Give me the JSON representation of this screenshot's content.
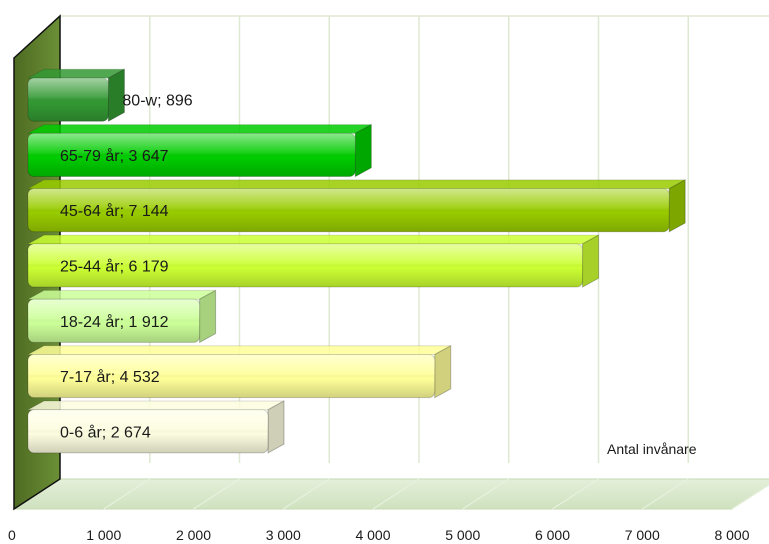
{
  "chart_data": {
    "type": "bar",
    "orientation": "horizontal",
    "categories": [
      "0-6 år",
      "7-17 år",
      "18-24 år",
      "25-44 år",
      "45-64 år",
      "65-79 år",
      "80-w"
    ],
    "values": [
      2674,
      4532,
      1912,
      6179,
      7144,
      3647,
      896
    ],
    "data_labels": [
      "0-6 år; 2 674",
      "7-17 år; 4 532",
      "18-24 år; 1 912",
      "25-44 år; 6 179",
      "45-64 år; 7 144",
      "65-79 år; 3 647",
      "80-w; 896"
    ],
    "colors": [
      "#fdfde0",
      "#ffff99",
      "#ccff99",
      "#ccff33",
      "#99cc00",
      "#00cc00",
      "#339933"
    ],
    "xlim": [
      0,
      8000
    ],
    "xticks": [
      0,
      1000,
      2000,
      3000,
      4000,
      5000,
      6000,
      7000,
      8000
    ],
    "xtick_labels": [
      "0",
      "1 000",
      "2 000",
      "3 000",
      "4 000",
      "5 000",
      "6 000",
      "7 000",
      "8 000"
    ],
    "annotation": "Antal invånare",
    "grid": true,
    "style": "3d",
    "wall_color": "#5a7a2a",
    "floor_color": "#d6e8c8"
  }
}
